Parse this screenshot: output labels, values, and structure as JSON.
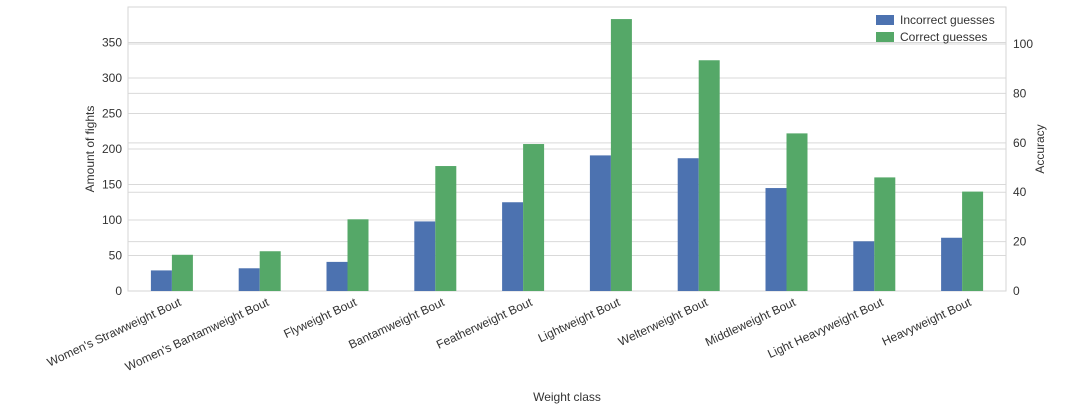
{
  "chart_data": {
    "type": "bar",
    "xlabel": "Weight class",
    "ylabel": "Amount of fights",
    "ylabel_right": "Accuracy",
    "categories": [
      "Women's Strawweight Bout",
      "Women's Bantamweight Bout",
      "Flyweight Bout",
      "Bantamweight Bout",
      "Featherweight Bout",
      "Lightweight Bout",
      "Welterweight Bout",
      "Middleweight Bout",
      "Light Heavyweight Bout",
      "Heavyweight Bout"
    ],
    "series": [
      {
        "name": "Incorrect guesses",
        "color": "#4c72b0",
        "values": [
          29,
          32,
          41,
          98,
          125,
          191,
          187,
          145,
          70,
          75
        ]
      },
      {
        "name": "Correct guesses",
        "color": "#55a868",
        "values": [
          51,
          56,
          101,
          176,
          207,
          383,
          325,
          222,
          160,
          140
        ]
      }
    ],
    "ylim": [
      0,
      400
    ],
    "yticks": [
      0,
      50,
      100,
      150,
      200,
      250,
      300,
      350
    ],
    "ylim_right": [
      0,
      115
    ],
    "yticks_right": [
      0,
      20,
      40,
      60,
      80,
      100
    ],
    "grid": true,
    "legend_position": "top-right"
  }
}
